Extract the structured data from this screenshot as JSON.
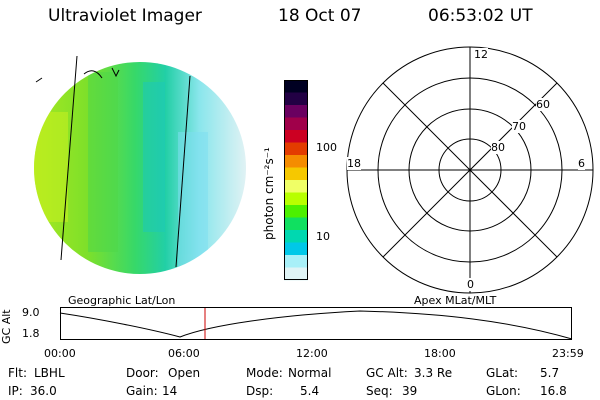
{
  "header": {
    "instrument": "Ultraviolet Imager",
    "date": "18 Oct 07",
    "time": "06:53:02 UT"
  },
  "colorbar": {
    "unit_label": "photon cm⁻²s⁻¹",
    "ticks": [
      "100",
      "10"
    ],
    "colors": [
      "#000022",
      "#220044",
      "#6a0060",
      "#a0004a",
      "#cc0022",
      "#e33c00",
      "#f58c00",
      "#f6c800",
      "#f0ff66",
      "#b8ff00",
      "#4cf000",
      "#10e060",
      "#00d8b0",
      "#00c8e8",
      "#a8f0f8",
      "#e0f4f6"
    ]
  },
  "polar_plot": {
    "hour_labels": {
      "top": "12",
      "left": "18",
      "right": "6",
      "bottom": "0"
    },
    "lat_labels": [
      "60",
      "70",
      "80"
    ]
  },
  "left_caption": "Geographic Lat/Lon",
  "right_caption": "Apex MLat/MLT",
  "orbit_plot": {
    "y_axis_label": "GC Alt",
    "y_ticks": [
      "9.0",
      "1.8"
    ],
    "x_ticks": [
      "00:00",
      "06:00",
      "12:00",
      "18:00",
      "23:59"
    ],
    "marker_color": "#cc0000"
  },
  "status": {
    "row1": [
      {
        "label": "Flt:",
        "value": "LBHL"
      },
      {
        "label": "Door:",
        "value": "Open"
      },
      {
        "label": "Mode:",
        "value": "Normal"
      },
      {
        "label": "GC Alt:",
        "value": "3.3 Re"
      },
      {
        "label": "GLat:",
        "value": "5.7"
      }
    ],
    "row2": [
      {
        "label": "IP:",
        "value": "36.0"
      },
      {
        "label": "Gain:",
        "value": "14"
      },
      {
        "label": "Dsp:",
        "value": "5.4"
      },
      {
        "label": "Seq:",
        "value": "39"
      },
      {
        "label": "GLon:",
        "value": "16.8"
      }
    ]
  }
}
